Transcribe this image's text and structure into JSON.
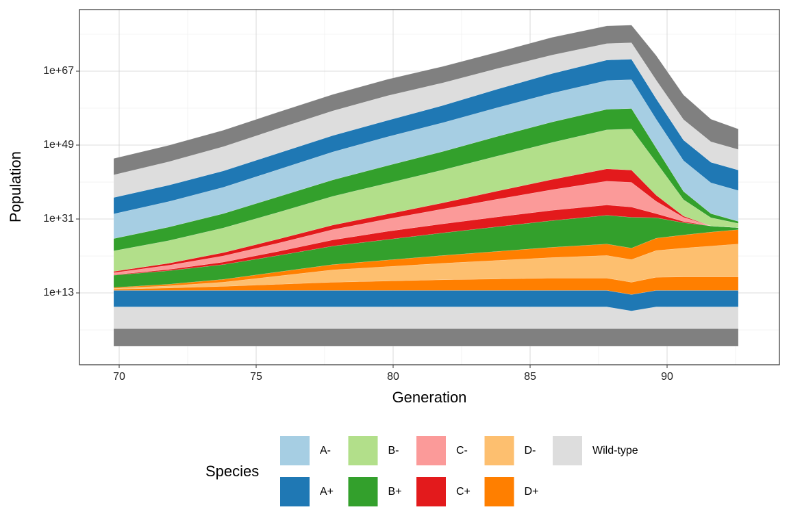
{
  "chart_data": {
    "type": "area",
    "stacked": true,
    "log_y": true,
    "grid": true,
    "x_label": "Generation",
    "y_label": "Population",
    "x": [
      69.8,
      71.8,
      73.8,
      75.8,
      77.8,
      79.8,
      81.8,
      83.8,
      85.8,
      87.8,
      88.7,
      89.6,
      90.6,
      91.6,
      92.6
    ],
    "xlim": [
      68.55,
      94.1
    ],
    "xticks": [
      70,
      75,
      80,
      85,
      90
    ],
    "ylim": [
      3.2e-05,
      1e+82
    ],
    "yticks": [
      {
        "value": 10000000000000.0,
        "label": "1e+13"
      },
      {
        "value": 1e+31,
        "label": "1e+31"
      },
      {
        "value": 1e+49,
        "label": "1e+49"
      },
      {
        "value": 1e+67,
        "label": "1e+67"
      }
    ],
    "series": [
      {
        "color": "#808080",
        "values": [
          20000.0,
          20000.0,
          20000.0,
          20000.0,
          20000.0,
          20000.0,
          20000.0,
          20000.0,
          20000.0,
          20000.0,
          20000.0,
          20000.0,
          20000.0,
          20000.0,
          20000.0
        ]
      },
      {
        "color": "#dddddd",
        "values": [
          200000.0,
          200000.0,
          200000.0,
          200000.0,
          200000.0,
          200000.0,
          200000.0,
          200000.0,
          200000.0,
          200000.0,
          20000.0,
          200000.0,
          200000.0,
          200000.0,
          200000.0
        ]
      },
      {
        "color": "#1f78b4",
        "values": [
          10000.0,
          10000.0,
          10000.0,
          10000.0,
          10000.0,
          10000.0,
          10000.0,
          10000.0,
          10000.0,
          10000.0,
          10000.0,
          10000.0,
          10000.0,
          10000.0,
          10000.0
        ]
      },
      {
        "color": "#ff7f00",
        "values": [
          2,
          4,
          10,
          32,
          100,
          200,
          400,
          630,
          1000,
          1000,
          1000,
          1600,
          2000,
          2000,
          2000
        ]
      },
      {
        "color": "#fdbf6f",
        "values": [
          1.6,
          3.2,
          10,
          100,
          1000,
          3200,
          10000.0,
          32000.0,
          100000.0,
          320000.0,
          320000.0,
          3200000.0,
          10000000.0,
          32000000.0,
          100000000.0
        ]
      },
      {
        "color": "#ff7f00",
        "values": [
          1.6,
          2.5,
          5,
          10,
          20,
          40,
          79,
          160,
          320,
          630,
          630,
          1000,
          1600,
          2500,
          3200
        ]
      },
      {
        "color": "#33a02c",
        "values": [
          1000,
          2000,
          4000,
          10000.0,
          32000.0,
          100000.0,
          320000.0,
          1000000.0,
          3200000.0,
          10000000.0,
          32000000.0,
          100000.0,
          1000,
          32,
          3.2
        ]
      },
      {
        "color": "#e31a1c",
        "values": [
          1.3,
          2,
          4,
          10,
          32,
          100,
          160,
          250,
          320,
          320,
          320,
          10,
          2,
          1,
          1
        ]
      },
      {
        "color": "#fb9a99",
        "values": [
          3.2,
          10,
          32,
          100,
          320,
          1000,
          4000,
          20000.0,
          100000.0,
          630000.0,
          1000000.0,
          1000,
          10,
          1,
          1
        ]
      },
      {
        "color": "#e31a1c",
        "values": [
          2,
          3.2,
          6.3,
          10,
          13,
          16,
          32,
          100,
          320,
          1000,
          1000,
          32,
          2,
          1,
          1
        ]
      },
      {
        "color": "#b2df8a",
        "values": [
          100000.0,
          320000.0,
          1000000.0,
          3200000.0,
          10000000.0,
          32000000.0,
          100000000.0,
          320000000.0,
          1000000000.0,
          3200000000.0,
          10000000000.0,
          100000000.0,
          10000.0,
          100,
          10
        ]
      },
      {
        "color": "#33a02c",
        "values": [
          1000,
          2000,
          3200,
          6300,
          10000.0,
          20000.0,
          32000.0,
          63000.0,
          100000.0,
          100000.0,
          100000.0,
          3200,
          100,
          10,
          3.2
        ]
      },
      {
        "color": "#a6cee3",
        "values": [
          1000000.0,
          1600000.0,
          2500000.0,
          4000000.0,
          6300000.0,
          10000000.0,
          10000000.0,
          10000000.0,
          10000000.0,
          10000000.0,
          10000000.0,
          10000000.0,
          32000000.0,
          32000000.0,
          32000000.0
        ]
      },
      {
        "color": "#1f78b4",
        "values": [
          10000.0,
          10000.0,
          10000.0,
          10000.0,
          10000.0,
          10000.0,
          16000.0,
          32000.0,
          63000.0,
          100000.0,
          100000.0,
          100000.0,
          100000.0,
          100000.0,
          100000.0
        ]
      },
      {
        "color": "#dddddd",
        "values": [
          320000.0,
          500000.0,
          800000.0,
          1000000.0,
          1000000.0,
          1000000.0,
          320000.0,
          100000.0,
          32000.0,
          10000.0,
          10000.0,
          32000.0,
          100000.0,
          100000.0,
          100000.0
        ]
      },
      {
        "color": "#808080",
        "values": [
          10000.0,
          10000.0,
          10000.0,
          10000.0,
          10000.0,
          10000.0,
          10000.0,
          10000.0,
          20000.0,
          20000.0,
          20000.0,
          1000000.0,
          1000000.0,
          320000.0,
          100000.0
        ]
      }
    ],
    "legend": {
      "title": "Species",
      "entries": [
        {
          "name": "A-",
          "color": "#a6cee3"
        },
        {
          "name": "A+",
          "color": "#1f78b4"
        },
        {
          "name": "B-",
          "color": "#b2df8a"
        },
        {
          "name": "B+",
          "color": "#33a02c"
        },
        {
          "name": "C-",
          "color": "#fb9a99"
        },
        {
          "name": "C+",
          "color": "#e31a1c"
        },
        {
          "name": "D-",
          "color": "#fdbf6f"
        },
        {
          "name": "D+",
          "color": "#ff7f00"
        },
        {
          "name": "Wild-type",
          "color": "#dddddd"
        }
      ]
    }
  }
}
